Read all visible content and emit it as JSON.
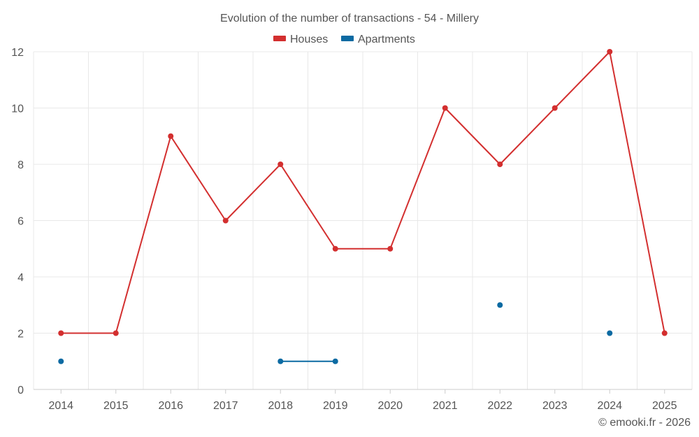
{
  "chart_data": {
    "type": "line",
    "title": "Evolution of the number of transactions - 54 - Millery",
    "categories": [
      "2014",
      "2015",
      "2016",
      "2017",
      "2018",
      "2019",
      "2020",
      "2021",
      "2022",
      "2023",
      "2024",
      "2025"
    ],
    "series": [
      {
        "name": "Houses",
        "color": "#d32f2f",
        "values": [
          2,
          2,
          9,
          6,
          8,
          5,
          5,
          10,
          8,
          10,
          12,
          2
        ]
      },
      {
        "name": "Apartments",
        "color": "#0b6aa2",
        "values": [
          1,
          null,
          null,
          null,
          1,
          1,
          null,
          null,
          3,
          null,
          2,
          null
        ]
      }
    ],
    "xlabel": "",
    "ylabel": "",
    "ylim": [
      0,
      12
    ],
    "yticks": [
      "0",
      "2",
      "4",
      "6",
      "8",
      "10",
      "12"
    ],
    "grid": true,
    "legend": "top-center"
  },
  "credit": "© emooki.fr - 2026"
}
